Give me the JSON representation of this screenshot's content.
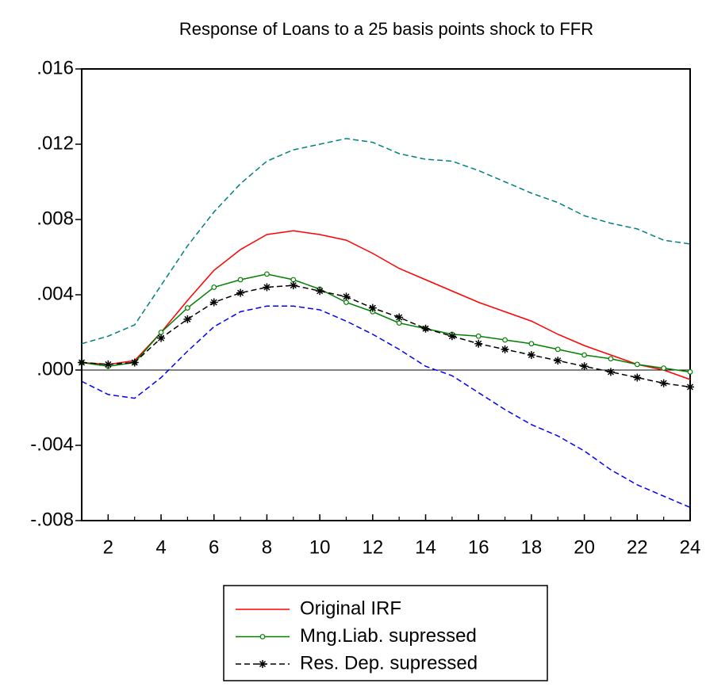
{
  "chart_data": {
    "type": "line",
    "title": "Response of Loans to a 25 basis points shock to FFR",
    "x": [
      1,
      2,
      3,
      4,
      5,
      6,
      7,
      8,
      9,
      10,
      11,
      12,
      13,
      14,
      15,
      16,
      17,
      18,
      19,
      20,
      21,
      22,
      23,
      24
    ],
    "xlim": [
      1,
      24
    ],
    "xticks": [
      2,
      4,
      6,
      8,
      10,
      12,
      14,
      16,
      18,
      20,
      22,
      24
    ],
    "ylim": [
      -0.008,
      0.016
    ],
    "yticks": [
      {
        "value": -0.008,
        "label": "-.008"
      },
      {
        "value": -0.004,
        "label": "-.004"
      },
      {
        "value": 0,
        "label": ".000"
      },
      {
        "value": 0.004,
        "label": ".004"
      },
      {
        "value": 0.008,
        "label": ".008"
      },
      {
        "value": 0.012,
        "label": ".012"
      },
      {
        "value": 0.016,
        "label": ".016"
      }
    ],
    "series": [
      {
        "color": "#008080",
        "dash": true,
        "values": [
          0.0014,
          0.0018,
          0.0024,
          0.0045,
          0.0066,
          0.0084,
          0.0099,
          0.0111,
          0.0117,
          0.012,
          0.0123,
          0.0121,
          0.0115,
          0.0112,
          0.0111,
          0.0106,
          0.01,
          0.0094,
          0.0089,
          0.0082,
          0.0078,
          0.0075,
          0.0069,
          0.0067
        ]
      },
      {
        "color": "#0000ff",
        "dash": true,
        "values": [
          -0.0006,
          -0.0013,
          -0.0015,
          -0.0004,
          0.001,
          0.0023,
          0.0031,
          0.0034,
          0.0034,
          0.0032,
          0.0026,
          0.0019,
          0.0011,
          0.0002,
          -0.0003,
          -0.0012,
          -0.0021,
          -0.0029,
          -0.0035,
          -0.0043,
          -0.0053,
          -0.0061,
          -0.0067,
          -0.0073
        ]
      },
      {
        "name": "Original IRF",
        "color": "#ff0000",
        "values": [
          0.0004,
          0.0003,
          0.0005,
          0.002,
          0.0037,
          0.0053,
          0.0064,
          0.0072,
          0.0074,
          0.0072,
          0.0069,
          0.0062,
          0.0054,
          0.0048,
          0.0042,
          0.0036,
          0.0031,
          0.0026,
          0.0019,
          0.0013,
          0.0008,
          0.0003,
          0.0,
          -0.0005
        ]
      },
      {
        "name": "Mng.Liab. supressed",
        "color": "#008000",
        "marker": "circle",
        "values": [
          0.0004,
          0.0002,
          0.0004,
          0.002,
          0.0033,
          0.0044,
          0.0048,
          0.0051,
          0.0048,
          0.0043,
          0.0036,
          0.0031,
          0.0025,
          0.0022,
          0.0019,
          0.0018,
          0.0016,
          0.0014,
          0.0011,
          0.0008,
          0.0006,
          0.0003,
          0.0001,
          -0.0001
        ]
      },
      {
        "name": "Res. Dep. supressed",
        "color": "#000000",
        "marker": "star",
        "dash": true,
        "values": [
          0.0004,
          0.0003,
          0.0004,
          0.0017,
          0.0027,
          0.0036,
          0.0041,
          0.0044,
          0.0045,
          0.0042,
          0.0039,
          0.0033,
          0.0028,
          0.0022,
          0.0018,
          0.0014,
          0.0011,
          0.0008,
          0.0005,
          0.0002,
          -0.0001,
          -0.0004,
          -0.0007,
          -0.0009
        ]
      }
    ]
  }
}
